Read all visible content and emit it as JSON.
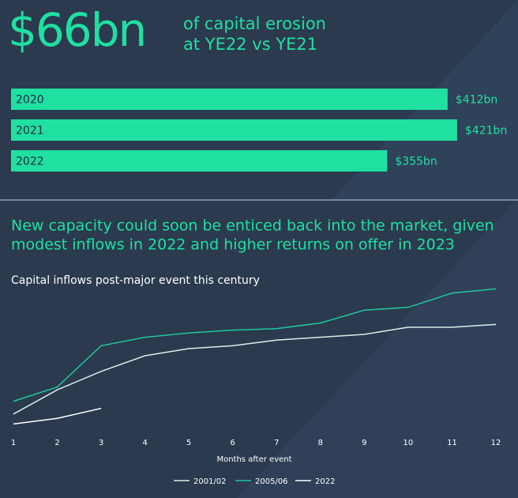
{
  "chart_data": [
    {
      "type": "hbar",
      "title": "$66bn",
      "subtitle_lines": [
        "of capital erosion",
        "at YE22 vs YE21"
      ],
      "categories": [
        "2020",
        "2021",
        "2022"
      ],
      "values": [
        412,
        421,
        355
      ],
      "value_labels": [
        "$412bn",
        "$421bn",
        "$355bn"
      ],
      "color": "#1fe0a0",
      "xlim": [
        0,
        430
      ]
    },
    {
      "type": "line",
      "heading_lines": [
        "New capacity could soon be enticed back into the market, given",
        "modest inflows in 2022 and higher returns on offer in 2023"
      ],
      "title": "Capital inflows post-major event this century",
      "x_label": "Months after event",
      "x": [
        1,
        2,
        3,
        4,
        5,
        6,
        7,
        8,
        9,
        10,
        11,
        12
      ],
      "xlim": [
        1,
        12
      ],
      "xticks": [
        1,
        2,
        3,
        4,
        5,
        6,
        7,
        8,
        9,
        10,
        11,
        12
      ],
      "ylim": [
        0,
        100
      ],
      "series": [
        {
          "name": "2001/02",
          "color": "#d8efe8",
          "values": [
            9,
            26,
            39,
            50,
            55,
            57,
            61,
            63,
            65,
            70,
            70,
            72
          ]
        },
        {
          "name": "2005/06",
          "color": "#1fc79c",
          "values": [
            18,
            28,
            57,
            63,
            66,
            68,
            69,
            73,
            82,
            84,
            94,
            97
          ]
        },
        {
          "name": "2022",
          "color": "#ffffff",
          "values": [
            2,
            6,
            13,
            null,
            null,
            null,
            null,
            null,
            null,
            null,
            null,
            null
          ]
        }
      ]
    }
  ]
}
